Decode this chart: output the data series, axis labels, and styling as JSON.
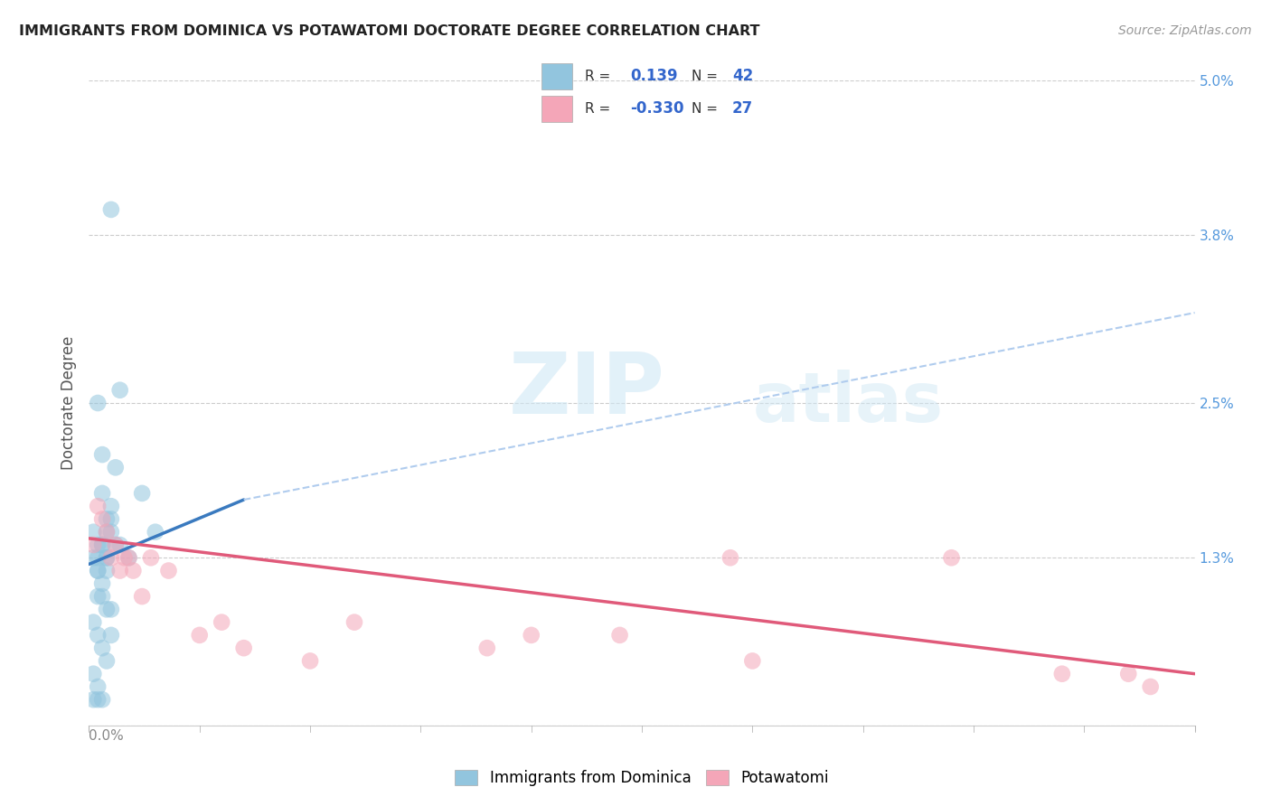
{
  "title": "IMMIGRANTS FROM DOMINICA VS POTAWATOMI DOCTORATE DEGREE CORRELATION CHART",
  "source": "Source: ZipAtlas.com",
  "ylabel": "Doctorate Degree",
  "right_yticklabels": [
    "",
    "1.3%",
    "2.5%",
    "3.8%",
    "5.0%"
  ],
  "right_ytick_vals": [
    0.0,
    0.013,
    0.025,
    0.038,
    0.05
  ],
  "xlim": [
    0.0,
    0.25
  ],
  "ylim": [
    0.0,
    0.05
  ],
  "blue_R": "0.139",
  "blue_N": "42",
  "pink_R": "-0.330",
  "pink_N": "27",
  "legend_label_blue": "Immigrants from Dominica",
  "legend_label_pink": "Potawatomi",
  "blue_color": "#92c5de",
  "pink_color": "#f4a6b8",
  "blue_line_color": "#3a7abf",
  "pink_line_color": "#e05a7a",
  "dashed_line_color": "#b0ccee",
  "watermark_zip": "ZIP",
  "watermark_atlas": "atlas",
  "blue_line_x0": 0.0,
  "blue_line_x_solid_end": 0.035,
  "blue_line_x1": 0.25,
  "blue_line_y0": 0.0125,
  "blue_line_y_solid_end": 0.0175,
  "blue_line_y1": 0.032,
  "pink_line_x0": 0.0,
  "pink_line_x1": 0.25,
  "pink_line_y0": 0.0145,
  "pink_line_y1": 0.004,
  "blue_dots_x": [
    0.005,
    0.007,
    0.002,
    0.003,
    0.004,
    0.005,
    0.006,
    0.003,
    0.004,
    0.005,
    0.002,
    0.003,
    0.004,
    0.005,
    0.001,
    0.002,
    0.003,
    0.004,
    0.001,
    0.002,
    0.007,
    0.009,
    0.015,
    0.002,
    0.003,
    0.004,
    0.006,
    0.002,
    0.003,
    0.004,
    0.005,
    0.001,
    0.002,
    0.003,
    0.004,
    0.005,
    0.001,
    0.002,
    0.003,
    0.012,
    0.001,
    0.002
  ],
  "blue_dots_y": [
    0.04,
    0.026,
    0.025,
    0.021,
    0.016,
    0.017,
    0.02,
    0.018,
    0.015,
    0.015,
    0.014,
    0.014,
    0.013,
    0.016,
    0.015,
    0.013,
    0.014,
    0.013,
    0.013,
    0.012,
    0.014,
    0.013,
    0.015,
    0.012,
    0.011,
    0.012,
    0.014,
    0.01,
    0.01,
    0.009,
    0.009,
    0.008,
    0.007,
    0.006,
    0.005,
    0.007,
    0.004,
    0.003,
    0.002,
    0.018,
    0.002,
    0.002
  ],
  "pink_dots_x": [
    0.001,
    0.002,
    0.003,
    0.004,
    0.005,
    0.006,
    0.007,
    0.008,
    0.009,
    0.01,
    0.012,
    0.014,
    0.018,
    0.025,
    0.03,
    0.035,
    0.05,
    0.06,
    0.09,
    0.1,
    0.12,
    0.145,
    0.15,
    0.195,
    0.22,
    0.235,
    0.24
  ],
  "pink_dots_y": [
    0.014,
    0.017,
    0.016,
    0.015,
    0.013,
    0.014,
    0.012,
    0.013,
    0.013,
    0.012,
    0.01,
    0.013,
    0.012,
    0.007,
    0.008,
    0.006,
    0.005,
    0.008,
    0.006,
    0.007,
    0.007,
    0.013,
    0.005,
    0.013,
    0.004,
    0.004,
    0.003
  ]
}
